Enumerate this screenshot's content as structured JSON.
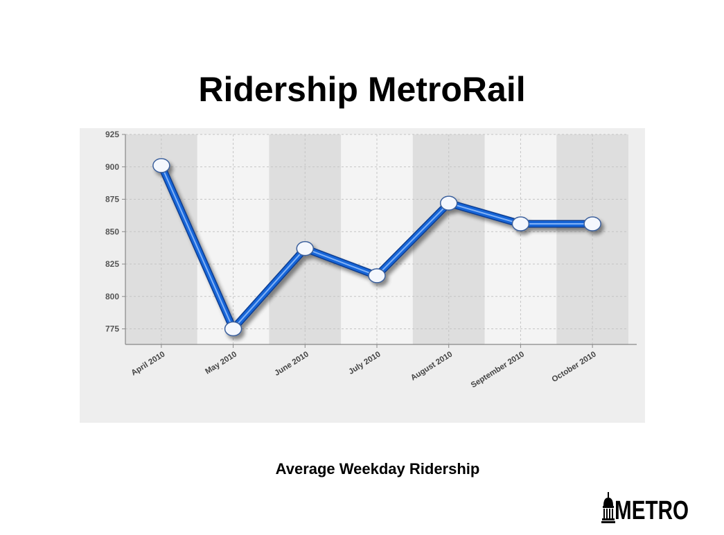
{
  "slide": {
    "title": "Ridership MetroRail",
    "caption": "Average Weekday Ridership"
  },
  "logo": {
    "text": "METRO",
    "icon": "capitol-dome-icon"
  },
  "colors": {
    "line": "#1565d8",
    "line_highlight": "#9ec6ff",
    "band_dark": "#dedede",
    "band_light": "#f4f4f4",
    "panel": "#eeeeee",
    "marker_fill": "#f4f7fd",
    "marker_stroke": "#3a5f9c"
  },
  "chart_data": {
    "type": "line",
    "title": "",
    "xlabel": "",
    "ylabel": "",
    "categories": [
      "April 2010",
      "May 2010",
      "June 2010",
      "July 2010",
      "August 2010",
      "September 2010",
      "October 2010"
    ],
    "series": [
      {
        "values": [
          901,
          775,
          837,
          816,
          872,
          856,
          856
        ]
      }
    ],
    "ylim": [
      763,
      925
    ],
    "yticks": [
      "775",
      "800",
      "825",
      "850",
      "875",
      "900",
      "925"
    ],
    "grid": true,
    "markers": "circle",
    "legend": "none"
  }
}
